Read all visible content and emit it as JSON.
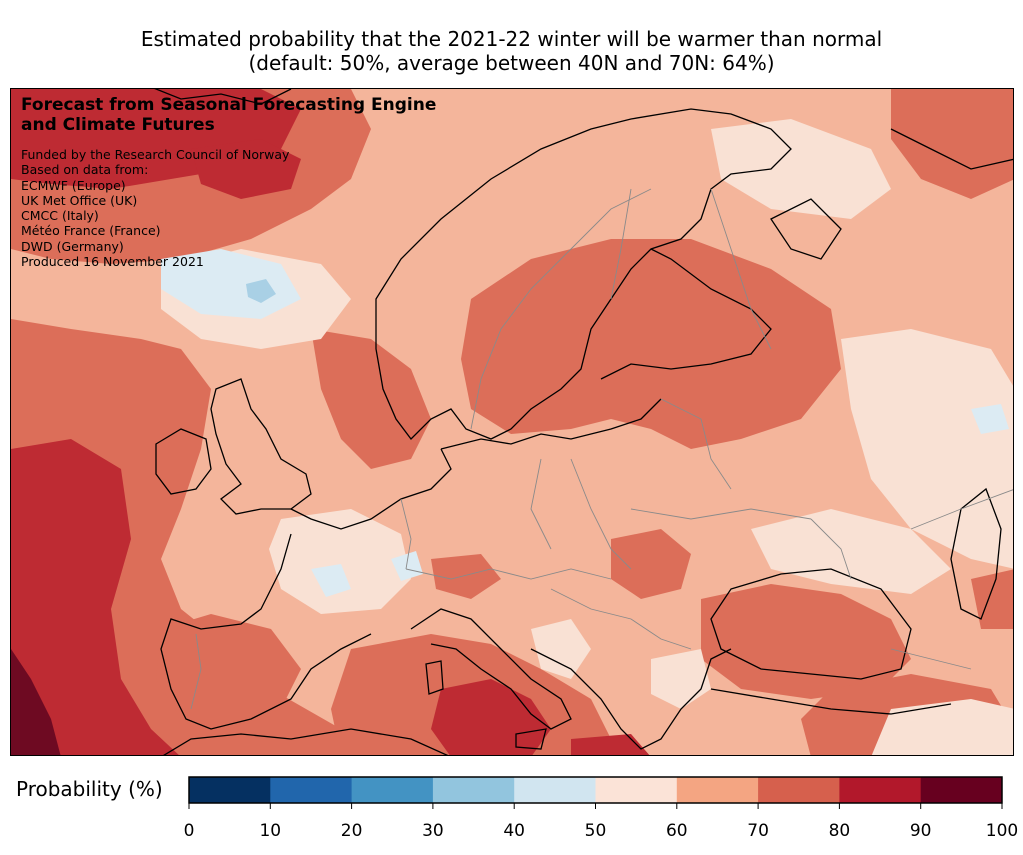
{
  "title": {
    "line1": "Estimated probability that the 2021-22 winter will be warmer than normal",
    "line2": "(default: 50%, average between 40N and 70N: 64%)"
  },
  "overlay": {
    "heading_line1": "Forecast from Seasonal Forecasting Engine",
    "heading_line2": "and Climate Futures",
    "lines": [
      "Funded by the Research Council of Norway",
      "Based on data from:",
      "ECMWF (Europe)",
      "UK Met Office (UK)",
      "CMCC (Italy)",
      "Météo France (France)",
      "DWD (Germany)",
      "Produced 16 November 2021"
    ]
  },
  "colorbar": {
    "label": "Probability (%)",
    "ticks": [
      "0",
      "10",
      "20",
      "30",
      "40",
      "50",
      "60",
      "70",
      "80",
      "90",
      "100"
    ],
    "bin_colors": [
      "#053061",
      "#2166ac",
      "#4393c3",
      "#92c5de",
      "#d1e5f0",
      "#fbe3d7",
      "#f4a582",
      "#d6604d",
      "#b2182b",
      "#67001f"
    ]
  },
  "map": {
    "fill_colors": {
      "p50_60": "#f9e1d4",
      "p40_50": "#dcebf3",
      "p30_40": "#a9d0e5",
      "p60_70": "#f4b59b",
      "p70_80": "#dc6e59",
      "p80_90": "#be2b33",
      "p90_100": "#6e0a22",
      "coastline": "#000000",
      "borders": "#8a8a8a"
    }
  }
}
